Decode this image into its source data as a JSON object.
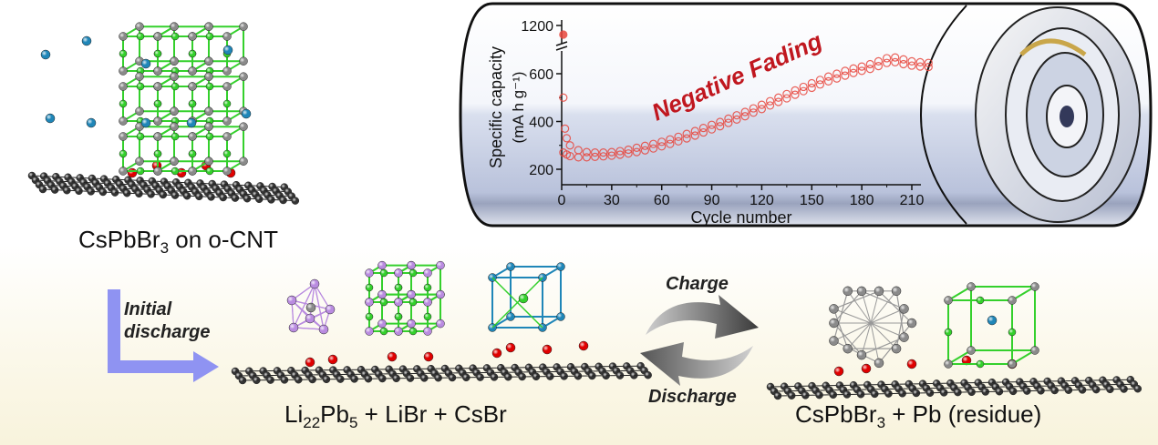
{
  "labels": {
    "top_left": {
      "formula": "CsPbBr",
      "sub": "3",
      "rest": " on o-CNT"
    },
    "middle": {
      "a": "Li",
      "a_sub1": "22",
      "a2": "Pb",
      "a_sub2": "5",
      "rest": " + LiBr + CsBr"
    },
    "right": {
      "formula": "CsPbBr",
      "sub": "3",
      "rest": " + Pb (residue)"
    },
    "initial_discharge": "Initial\ndischarge",
    "charge": "Charge",
    "discharge": "Discharge"
  },
  "colors": {
    "arrow": "#8f93f2",
    "data": "#e8453c",
    "annotation": "#c0171f",
    "Cs": "#1f86b8",
    "Br": "#34d02c",
    "Pb": "#8a8a8a",
    "O": "#e00000",
    "C": "#333333",
    "Li": "#b98be0"
  },
  "chart_data": {
    "type": "scatter",
    "xlabel": "Cycle number",
    "ylabel": "Specific capacity",
    "ylabel_units": "(mA h g⁻¹)",
    "annotation": "Negative Fading",
    "xlim": [
      0,
      225
    ],
    "ylim": [
      150,
      1200
    ],
    "y_axis_break": [
      700,
      1100
    ],
    "xticks": [
      "0",
      "30",
      "60",
      "90",
      "120",
      "150",
      "180",
      "210"
    ],
    "yticks": [
      "200",
      "400",
      "600",
      "1200"
    ],
    "series": [
      {
        "points": [
          [
            1,
            1150
          ],
          [
            1,
            500
          ],
          [
            2,
            370
          ],
          [
            3,
            330
          ],
          [
            5,
            300
          ],
          [
            10,
            280
          ],
          [
            15,
            272
          ],
          [
            20,
            270
          ],
          [
            25,
            270
          ],
          [
            30,
            272
          ],
          [
            35,
            276
          ],
          [
            40,
            282
          ],
          [
            45,
            290
          ],
          [
            50,
            298
          ],
          [
            55,
            306
          ],
          [
            60,
            315
          ],
          [
            65,
            325
          ],
          [
            70,
            336
          ],
          [
            75,
            348
          ],
          [
            80,
            360
          ],
          [
            85,
            373
          ],
          [
            90,
            386
          ],
          [
            95,
            398
          ],
          [
            100,
            412
          ],
          [
            105,
            426
          ],
          [
            110,
            440
          ],
          [
            115,
            455
          ],
          [
            120,
            470
          ],
          [
            125,
            485
          ],
          [
            130,
            500
          ],
          [
            135,
            515
          ],
          [
            140,
            530
          ],
          [
            145,
            545
          ],
          [
            150,
            560
          ],
          [
            155,
            574
          ],
          [
            160,
            588
          ],
          [
            165,
            600
          ],
          [
            170,
            612
          ],
          [
            175,
            622
          ],
          [
            180,
            630
          ],
          [
            185,
            640
          ],
          [
            190,
            652
          ],
          [
            195,
            665
          ],
          [
            200,
            668
          ],
          [
            205,
            660
          ],
          [
            210,
            652
          ],
          [
            215,
            648
          ],
          [
            220,
            645
          ]
        ]
      },
      {
        "points": [
          [
            1,
            270
          ],
          [
            3,
            262
          ],
          [
            5,
            255
          ],
          [
            10,
            250
          ],
          [
            15,
            250
          ],
          [
            20,
            252
          ],
          [
            25,
            254
          ],
          [
            30,
            257
          ],
          [
            35,
            261
          ],
          [
            40,
            266
          ],
          [
            45,
            272
          ],
          [
            50,
            279
          ],
          [
            55,
            287
          ],
          [
            60,
            296
          ],
          [
            65,
            306
          ],
          [
            70,
            317
          ],
          [
            75,
            329
          ],
          [
            80,
            341
          ],
          [
            85,
            354
          ],
          [
            90,
            367
          ],
          [
            95,
            380
          ],
          [
            100,
            394
          ],
          [
            105,
            408
          ],
          [
            110,
            422
          ],
          [
            115,
            437
          ],
          [
            120,
            452
          ],
          [
            125,
            467
          ],
          [
            130,
            482
          ],
          [
            135,
            497
          ],
          [
            140,
            512
          ],
          [
            145,
            527
          ],
          [
            150,
            541
          ],
          [
            155,
            555
          ],
          [
            160,
            568
          ],
          [
            165,
            580
          ],
          [
            170,
            592
          ],
          [
            175,
            603
          ],
          [
            180,
            612
          ],
          [
            185,
            620
          ],
          [
            190,
            632
          ],
          [
            195,
            645
          ],
          [
            200,
            648
          ],
          [
            205,
            640
          ],
          [
            210,
            634
          ],
          [
            215,
            630
          ],
          [
            220,
            628
          ]
        ]
      }
    ]
  }
}
